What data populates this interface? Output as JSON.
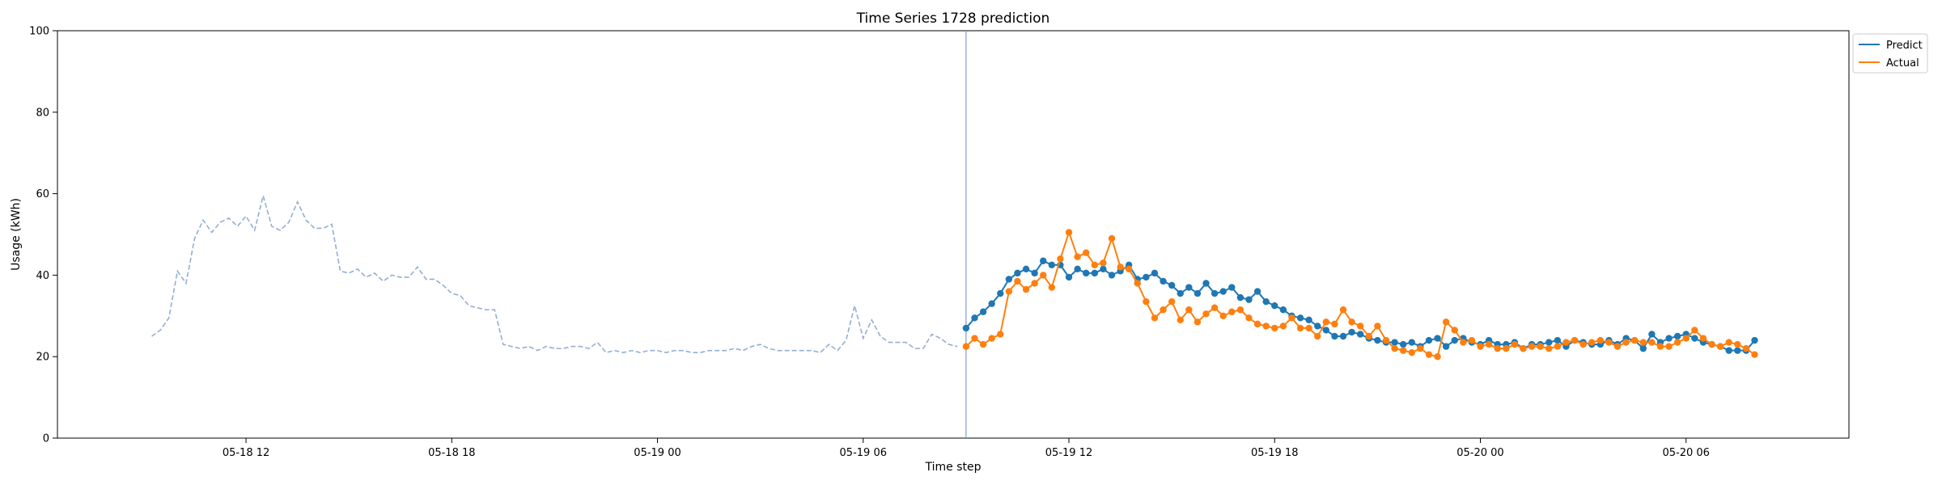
{
  "chart_data": {
    "type": "line",
    "title": "Time Series 1728 prediction",
    "xlabel": "Time step",
    "ylabel": "Usage (kWh)",
    "ylim": [
      0,
      100
    ],
    "yticks": [
      0,
      20,
      40,
      60,
      80,
      100
    ],
    "x_start": "2023-05-18 06:30",
    "x_end": "2023-05-20 10:45",
    "xticks": [
      {
        "t": "2023-05-18 12:00",
        "label": "05-18 12"
      },
      {
        "t": "2023-05-18 18:00",
        "label": "05-18 18"
      },
      {
        "t": "2023-05-19 00:00",
        "label": "05-19 00"
      },
      {
        "t": "2023-05-19 06:00",
        "label": "05-19 06"
      },
      {
        "t": "2023-05-19 12:00",
        "label": "05-19 12"
      },
      {
        "t": "2023-05-19 18:00",
        "label": "05-19 18"
      },
      {
        "t": "2023-05-20 00:00",
        "label": "05-20 00"
      },
      {
        "t": "2023-05-20 06:00",
        "label": "05-20 06"
      }
    ],
    "step_minutes": 15,
    "history": {
      "start": "2023-05-18 09:15",
      "style": "dashed",
      "color": "#94aed4",
      "values": [
        25.0,
        26.5,
        29.5,
        41.0,
        38.0,
        49.0,
        53.5,
        50.5,
        53.0,
        54.0,
        52.0,
        54.5,
        51.0,
        59.5,
        52.0,
        51.0,
        53.0,
        58.0,
        53.5,
        51.5,
        51.5,
        52.5,
        41.0,
        40.5,
        41.5,
        39.5,
        40.5,
        38.5,
        40.0,
        39.5,
        39.5,
        42.0,
        39.0,
        39.0,
        37.5,
        35.5,
        35.0,
        32.5,
        32.0,
        31.5,
        31.5,
        23.0,
        22.5,
        22.0,
        22.5,
        21.5,
        22.5,
        22.0,
        22.0,
        22.5,
        22.5,
        22.0,
        23.5,
        21.0,
        21.5,
        21.0,
        21.5,
        21.0,
        21.5,
        21.5,
        21.0,
        21.5,
        21.5,
        21.0,
        21.0,
        21.5,
        21.5,
        21.5,
        22.0,
        21.5,
        22.5,
        23.0,
        22.0,
        21.5,
        21.5,
        21.5,
        21.5,
        21.5,
        21.0,
        23.0,
        21.5,
        24.0,
        32.5,
        24.5,
        29.0,
        25.0,
        23.5,
        23.5,
        23.5,
        22.0,
        22.0,
        25.5,
        24.5,
        23.0,
        22.5
      ]
    },
    "split_time": "2023-05-19 09:00",
    "series": [
      {
        "name": "Predict",
        "color": "#1f77b4",
        "start": "2023-05-19 09:00",
        "values": [
          27.0,
          29.5,
          31.0,
          33.0,
          35.5,
          39.0,
          40.5,
          41.5,
          40.5,
          43.5,
          42.5,
          42.5,
          39.5,
          41.5,
          40.5,
          40.5,
          41.5,
          40.0,
          41.0,
          42.5,
          39.0,
          39.5,
          40.5,
          38.5,
          37.5,
          35.5,
          37.0,
          35.5,
          38.0,
          35.5,
          36.0,
          37.0,
          34.5,
          34.0,
          36.0,
          33.5,
          32.5,
          31.5,
          30.0,
          29.5,
          29.0,
          27.5,
          26.5,
          25.0,
          25.0,
          26.0,
          25.5,
          24.5,
          24.0,
          23.5,
          23.5,
          23.0,
          23.5,
          22.5,
          24.0,
          24.5,
          22.5,
          24.0,
          24.5,
          23.5,
          23.0,
          24.0,
          23.0,
          23.0,
          23.5,
          22.0,
          23.0,
          23.0,
          23.5,
          24.0,
          22.5,
          24.0,
          23.5,
          23.0,
          23.0,
          24.0,
          23.0,
          24.5,
          24.0,
          22.0,
          25.5,
          23.5,
          24.5,
          25.0,
          25.5,
          24.5,
          23.5,
          23.0,
          22.5,
          21.5,
          21.5,
          21.5,
          24.0
        ]
      },
      {
        "name": "Actual",
        "color": "#ff7f0e",
        "start": "2023-05-19 09:00",
        "values": [
          22.5,
          24.5,
          23.0,
          24.5,
          25.5,
          36.0,
          38.5,
          36.5,
          38.0,
          40.0,
          37.0,
          44.0,
          50.5,
          44.5,
          45.5,
          42.5,
          43.0,
          49.0,
          42.0,
          41.5,
          38.0,
          33.5,
          29.5,
          31.5,
          33.5,
          29.0,
          31.5,
          28.5,
          30.5,
          32.0,
          30.0,
          31.0,
          31.5,
          29.5,
          28.0,
          27.5,
          27.0,
          27.5,
          29.5,
          27.0,
          27.0,
          25.0,
          28.5,
          28.0,
          31.5,
          28.5,
          27.5,
          25.0,
          27.5,
          24.0,
          22.0,
          21.5,
          21.0,
          22.0,
          20.5,
          20.0,
          28.5,
          26.5,
          23.5,
          24.0,
          22.5,
          23.0,
          22.0,
          22.0,
          23.0,
          22.0,
          22.5,
          22.5,
          22.0,
          22.5,
          23.5,
          24.0,
          23.0,
          23.5,
          24.0,
          23.5,
          22.5,
          23.5,
          24.0,
          23.5,
          23.5,
          22.5,
          22.5,
          23.5,
          24.5,
          26.5,
          24.5,
          23.0,
          22.5,
          23.5,
          23.0,
          22.0,
          20.5
        ]
      }
    ],
    "legend": {
      "position": "outside-top-right",
      "entries": [
        "Predict",
        "Actual"
      ]
    },
    "grid": false
  }
}
